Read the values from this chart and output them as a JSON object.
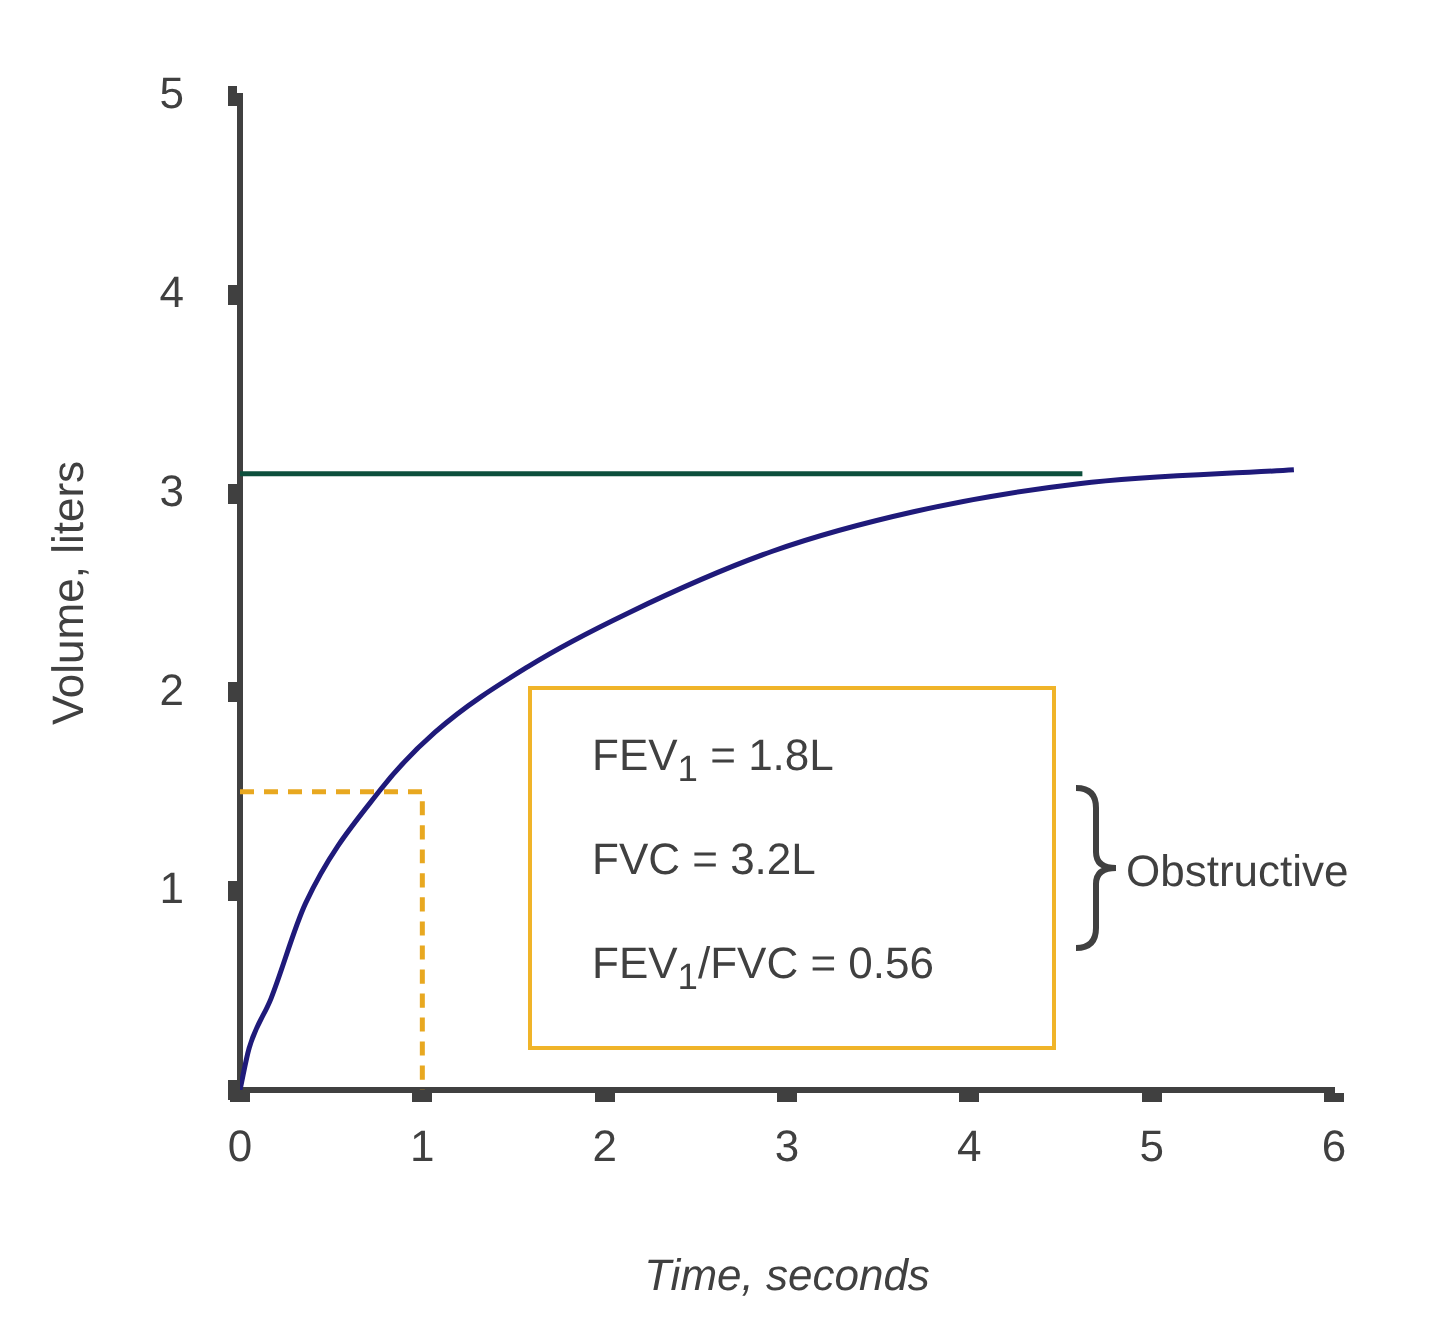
{
  "chart_data": {
    "type": "line",
    "xlabel": "Time, seconds",
    "ylabel": "Volume, liters",
    "xlim": [
      0,
      6
    ],
    "xticks": [
      0,
      1,
      2,
      3,
      4,
      5,
      6
    ],
    "ylim": [
      0,
      5
    ],
    "yticks": [
      {
        "value": 0,
        "label": null
      },
      1,
      2,
      3,
      4,
      5
    ],
    "grid": false,
    "legend": false,
    "marker": "none",
    "series": [
      {
        "color": "#1f1a7a",
        "line_style": "solid",
        "x": [
          0,
          0.05,
          0.17,
          0.36,
          0.77,
          1.07,
          1.58,
          2.13,
          2.92,
          3.7,
          4.6,
          5.78
        ],
        "values": [
          0,
          0.21,
          0.46,
          0.94,
          1.51,
          1.8,
          2.13,
          2.4,
          2.71,
          2.91,
          3.05,
          3.12
        ]
      },
      {
        "color": "#0d4f3c",
        "line_style": "solid",
        "x": [
          0,
          4.62
        ],
        "values": [
          3.1,
          3.1
        ]
      },
      {
        "color": "#e8a820",
        "line_style": "dashed",
        "x": [
          0,
          1,
          1
        ],
        "values": [
          1.5,
          1.5,
          0
        ]
      }
    ],
    "annotations": [
      "FEV$_{1}$ = 1.8L",
      "FVC = 3.2L",
      "FEV$_{1}$/FVC = 0.56",
      "Obstructive"
    ]
  }
}
